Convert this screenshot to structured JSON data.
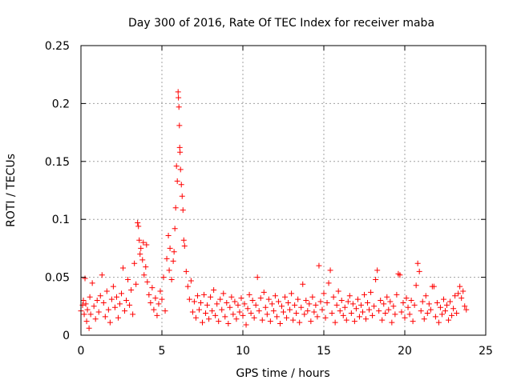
{
  "chart_data": {
    "type": "scatter",
    "title": "Day 300 of 2016, Rate Of TEC Index for receiver maba",
    "xlabel": "GPS time / hours",
    "ylabel": "ROTI / TECUs",
    "xlim": [
      0,
      25
    ],
    "ylim": [
      0,
      0.25
    ],
    "xticks": [
      0,
      5,
      10,
      15,
      20,
      25
    ],
    "xtick_labels": [
      "0",
      "5",
      "10",
      "15",
      "20",
      "25"
    ],
    "yticks": [
      0,
      0.05,
      0.1,
      0.15,
      0.2,
      0.25
    ],
    "ytick_labels": [
      "0",
      "0.05",
      "0.1",
      "0.15",
      "0.2",
      "0.25"
    ],
    "grid": true,
    "marker": "+",
    "color": "#ff0000",
    "series": [
      {
        "name": "ROTI",
        "points": [
          [
            0.0,
            0.021
          ],
          [
            0.1,
            0.026
          ],
          [
            0.15,
            0.03
          ],
          [
            0.2,
            0.018
          ],
          [
            0.25,
            0.049
          ],
          [
            0.3,
            0.027
          ],
          [
            0.35,
            0.012
          ],
          [
            0.4,
            0.022
          ],
          [
            0.5,
            0.006
          ],
          [
            0.55,
            0.033
          ],
          [
            0.6,
            0.018
          ],
          [
            0.7,
            0.045
          ],
          [
            0.8,
            0.025
          ],
          [
            0.9,
            0.014
          ],
          [
            1.0,
            0.03
          ],
          [
            1.1,
            0.02
          ],
          [
            1.2,
            0.034
          ],
          [
            1.3,
            0.052
          ],
          [
            1.4,
            0.028
          ],
          [
            1.5,
            0.016
          ],
          [
            1.6,
            0.038
          ],
          [
            1.7,
            0.022
          ],
          [
            1.8,
            0.011
          ],
          [
            1.9,
            0.031
          ],
          [
            2.0,
            0.042
          ],
          [
            2.1,
            0.024
          ],
          [
            2.2,
            0.033
          ],
          [
            2.3,
            0.015
          ],
          [
            2.4,
            0.027
          ],
          [
            2.5,
            0.036
          ],
          [
            2.6,
            0.058
          ],
          [
            2.7,
            0.021
          ],
          [
            2.8,
            0.03
          ],
          [
            2.9,
            0.048
          ],
          [
            3.0,
            0.026
          ],
          [
            3.1,
            0.039
          ],
          [
            3.2,
            0.018
          ],
          [
            3.3,
            0.062
          ],
          [
            3.4,
            0.044
          ],
          [
            3.5,
            0.097
          ],
          [
            3.55,
            0.094
          ],
          [
            3.6,
            0.082
          ],
          [
            3.65,
            0.07
          ],
          [
            3.7,
            0.075
          ],
          [
            3.8,
            0.065
          ],
          [
            3.85,
            0.08
          ],
          [
            3.9,
            0.052
          ],
          [
            4.0,
            0.059
          ],
          [
            4.05,
            0.078
          ],
          [
            4.1,
            0.046
          ],
          [
            4.2,
            0.035
          ],
          [
            4.3,
            0.028
          ],
          [
            4.4,
            0.041
          ],
          [
            4.5,
            0.022
          ],
          [
            4.6,
            0.032
          ],
          [
            4.7,
            0.017
          ],
          [
            4.8,
            0.027
          ],
          [
            4.9,
            0.038
          ],
          [
            5.0,
            0.031
          ],
          [
            5.1,
            0.05
          ],
          [
            5.2,
            0.021
          ],
          [
            5.3,
            0.066
          ],
          [
            5.4,
            0.086
          ],
          [
            5.45,
            0.056
          ],
          [
            5.5,
            0.075
          ],
          [
            5.6,
            0.048
          ],
          [
            5.7,
            0.064
          ],
          [
            5.75,
            0.072
          ],
          [
            5.8,
            0.092
          ],
          [
            5.85,
            0.11
          ],
          [
            5.9,
            0.146
          ],
          [
            5.95,
            0.133
          ],
          [
            6.0,
            0.21
          ],
          [
            6.02,
            0.205
          ],
          [
            6.05,
            0.197
          ],
          [
            6.08,
            0.181
          ],
          [
            6.1,
            0.162
          ],
          [
            6.12,
            0.158
          ],
          [
            6.15,
            0.143
          ],
          [
            6.2,
            0.13
          ],
          [
            6.25,
            0.12
          ],
          [
            6.3,
            0.108
          ],
          [
            6.35,
            0.082
          ],
          [
            6.4,
            0.077
          ],
          [
            6.5,
            0.055
          ],
          [
            6.6,
            0.042
          ],
          [
            6.7,
            0.031
          ],
          [
            6.8,
            0.047
          ],
          [
            6.9,
            0.02
          ],
          [
            7.0,
            0.029
          ],
          [
            7.1,
            0.015
          ],
          [
            7.2,
            0.034
          ],
          [
            7.3,
            0.022
          ],
          [
            7.4,
            0.028
          ],
          [
            7.5,
            0.011
          ],
          [
            7.6,
            0.035
          ],
          [
            7.7,
            0.019
          ],
          [
            7.8,
            0.026
          ],
          [
            7.9,
            0.014
          ],
          [
            8.0,
            0.033
          ],
          [
            8.1,
            0.021
          ],
          [
            8.2,
            0.039
          ],
          [
            8.3,
            0.017
          ],
          [
            8.4,
            0.027
          ],
          [
            8.5,
            0.012
          ],
          [
            8.6,
            0.031
          ],
          [
            8.7,
            0.022
          ],
          [
            8.8,
            0.036
          ],
          [
            8.9,
            0.016
          ],
          [
            9.0,
            0.028
          ],
          [
            9.1,
            0.01
          ],
          [
            9.2,
            0.024
          ],
          [
            9.3,
            0.033
          ],
          [
            9.4,
            0.018
          ],
          [
            9.5,
            0.029
          ],
          [
            9.6,
            0.014
          ],
          [
            9.7,
            0.026
          ],
          [
            9.8,
            0.02
          ],
          [
            9.9,
            0.032
          ],
          [
            10.0,
            0.017
          ],
          [
            10.1,
            0.027
          ],
          [
            10.2,
            0.009
          ],
          [
            10.3,
            0.023
          ],
          [
            10.4,
            0.035
          ],
          [
            10.5,
            0.019
          ],
          [
            10.6,
            0.03
          ],
          [
            10.7,
            0.015
          ],
          [
            10.8,
            0.026
          ],
          [
            10.9,
            0.05
          ],
          [
            11.0,
            0.021
          ],
          [
            11.1,
            0.032
          ],
          [
            11.2,
            0.013
          ],
          [
            11.3,
            0.037
          ],
          [
            11.4,
            0.024
          ],
          [
            11.5,
            0.018
          ],
          [
            11.6,
            0.031
          ],
          [
            11.7,
            0.012
          ],
          [
            11.8,
            0.027
          ],
          [
            11.9,
            0.021
          ],
          [
            12.0,
            0.034
          ],
          [
            12.1,
            0.016
          ],
          [
            12.2,
            0.029
          ],
          [
            12.3,
            0.01
          ],
          [
            12.4,
            0.025
          ],
          [
            12.5,
            0.02
          ],
          [
            12.6,
            0.033
          ],
          [
            12.7,
            0.015
          ],
          [
            12.8,
            0.028
          ],
          [
            12.9,
            0.022
          ],
          [
            13.0,
            0.036
          ],
          [
            13.1,
            0.013
          ],
          [
            13.2,
            0.026
          ],
          [
            13.3,
            0.019
          ],
          [
            13.4,
            0.031
          ],
          [
            13.5,
            0.011
          ],
          [
            13.6,
            0.024
          ],
          [
            13.7,
            0.044
          ],
          [
            13.8,
            0.018
          ],
          [
            13.9,
            0.03
          ],
          [
            14.0,
            0.021
          ],
          [
            14.1,
            0.027
          ],
          [
            14.2,
            0.012
          ],
          [
            14.3,
            0.033
          ],
          [
            14.4,
            0.02
          ],
          [
            14.5,
            0.026
          ],
          [
            14.6,
            0.016
          ],
          [
            14.7,
            0.06
          ],
          [
            14.8,
            0.029
          ],
          [
            14.9,
            0.022
          ],
          [
            15.0,
            0.036
          ],
          [
            15.1,
            0.015
          ],
          [
            15.2,
            0.028
          ],
          [
            15.3,
            0.045
          ],
          [
            15.4,
            0.056
          ],
          [
            15.5,
            0.019
          ],
          [
            15.6,
            0.033
          ],
          [
            15.7,
            0.011
          ],
          [
            15.8,
            0.026
          ],
          [
            15.9,
            0.038
          ],
          [
            16.0,
            0.021
          ],
          [
            16.1,
            0.03
          ],
          [
            16.2,
            0.017
          ],
          [
            16.3,
            0.024
          ],
          [
            16.4,
            0.013
          ],
          [
            16.5,
            0.029
          ],
          [
            16.6,
            0.034
          ],
          [
            16.7,
            0.019
          ],
          [
            16.8,
            0.027
          ],
          [
            16.9,
            0.012
          ],
          [
            17.0,
            0.023
          ],
          [
            17.1,
            0.031
          ],
          [
            17.2,
            0.016
          ],
          [
            17.3,
            0.026
          ],
          [
            17.4,
            0.02
          ],
          [
            17.5,
            0.035
          ],
          [
            17.6,
            0.014
          ],
          [
            17.7,
            0.028
          ],
          [
            17.8,
            0.022
          ],
          [
            17.9,
            0.037
          ],
          [
            18.0,
            0.017
          ],
          [
            18.1,
            0.025
          ],
          [
            18.2,
            0.048
          ],
          [
            18.3,
            0.056
          ],
          [
            18.4,
            0.021
          ],
          [
            18.5,
            0.03
          ],
          [
            18.6,
            0.013
          ],
          [
            18.7,
            0.027
          ],
          [
            18.8,
            0.019
          ],
          [
            18.9,
            0.033
          ],
          [
            19.0,
            0.022
          ],
          [
            19.1,
            0.029
          ],
          [
            19.2,
            0.011
          ],
          [
            19.3,
            0.025
          ],
          [
            19.4,
            0.018
          ],
          [
            19.5,
            0.035
          ],
          [
            19.6,
            0.053
          ],
          [
            19.7,
            0.052
          ],
          [
            19.8,
            0.02
          ],
          [
            19.9,
            0.028
          ],
          [
            20.0,
            0.015
          ],
          [
            20.1,
            0.032
          ],
          [
            20.2,
            0.024
          ],
          [
            20.3,
            0.018
          ],
          [
            20.4,
            0.03
          ],
          [
            20.5,
            0.012
          ],
          [
            20.6,
            0.026
          ],
          [
            20.7,
            0.043
          ],
          [
            20.8,
            0.062
          ],
          [
            20.9,
            0.055
          ],
          [
            21.0,
            0.021
          ],
          [
            21.1,
            0.029
          ],
          [
            21.2,
            0.014
          ],
          [
            21.3,
            0.034
          ],
          [
            21.4,
            0.019
          ],
          [
            21.5,
            0.027
          ],
          [
            21.6,
            0.022
          ],
          [
            21.7,
            0.042
          ],
          [
            21.8,
            0.042
          ],
          [
            21.9,
            0.016
          ],
          [
            22.0,
            0.028
          ],
          [
            22.1,
            0.011
          ],
          [
            22.2,
            0.024
          ],
          [
            22.3,
            0.018
          ],
          [
            22.4,
            0.031
          ],
          [
            22.5,
            0.021
          ],
          [
            22.6,
            0.026
          ],
          [
            22.7,
            0.013
          ],
          [
            22.8,
            0.029
          ],
          [
            22.9,
            0.017
          ],
          [
            23.0,
            0.023
          ],
          [
            23.1,
            0.034
          ],
          [
            23.2,
            0.019
          ],
          [
            23.3,
            0.036
          ],
          [
            23.4,
            0.042
          ],
          [
            23.5,
            0.032
          ],
          [
            23.6,
            0.038
          ],
          [
            23.7,
            0.025
          ],
          [
            23.8,
            0.022
          ]
        ]
      }
    ]
  }
}
